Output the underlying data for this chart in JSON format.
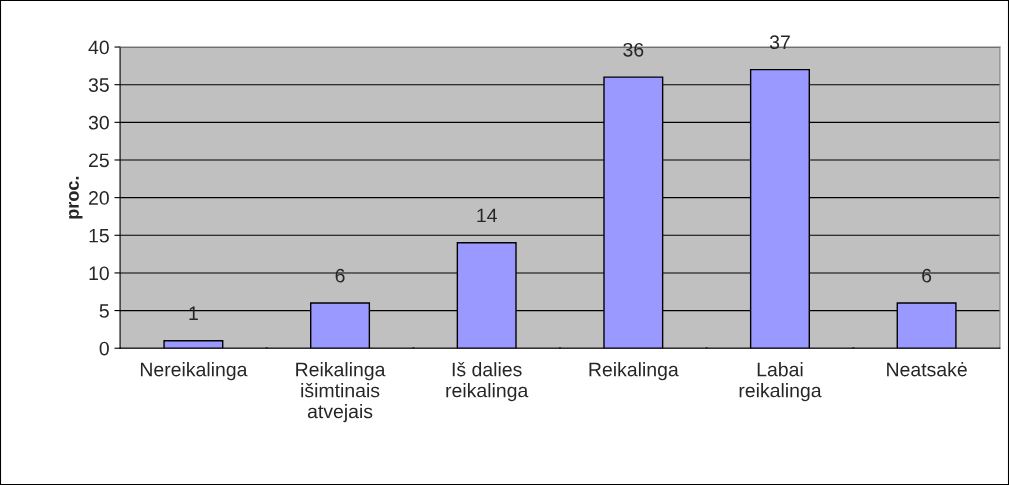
{
  "chart_data": {
    "type": "bar",
    "ylabel": "proc.",
    "categories": [
      "Nereikalinga",
      "Reikalinga\nišimtinais\natvejais",
      "Iš dalies\nreikalinga",
      "Reikalinga",
      "Labai\nreikalinga",
      "Neatsakė"
    ],
    "values": [
      1,
      6,
      14,
      36,
      37,
      6
    ],
    "color": "#9999ff",
    "ylim": [
      0,
      40
    ],
    "yticks": [
      0,
      5,
      10,
      15,
      20,
      25,
      30,
      35,
      40
    ],
    "grid": "y",
    "data_labels": true
  }
}
